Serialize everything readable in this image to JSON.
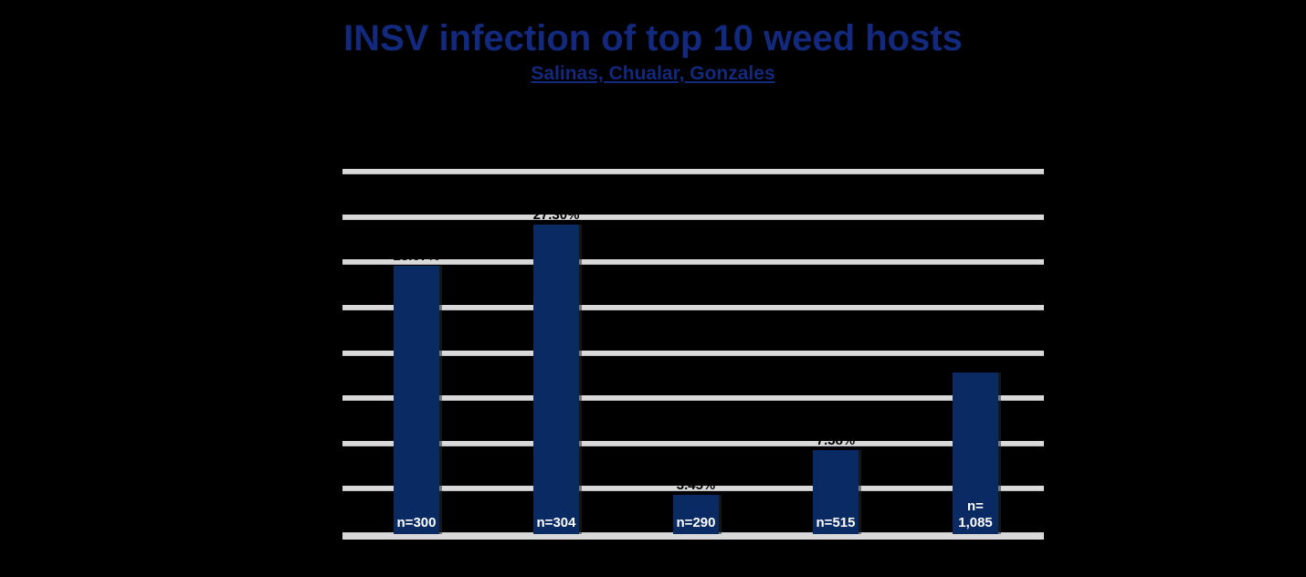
{
  "page": {
    "background_color": "#000000"
  },
  "header": {
    "title": "INSV infection of top 10 weed hosts",
    "subtitle": "Salinas, Chualar, Gonzales"
  },
  "colors": {
    "title_text": "#12297d",
    "bar_fill": "#0a2a63",
    "gridline": "#d9d9d9",
    "value_label_text": "#000000",
    "n_label_text": "#ffffff"
  },
  "chart_data": {
    "type": "bar",
    "title": "INSV infection of top 10 weed hosts",
    "subtitle": "Salinas, Chualar, Gonzales",
    "categories": [
      "",
      "",
      "",
      "",
      ""
    ],
    "values": [
      23.67,
      27.3,
      3.45,
      7.38,
      14.29
    ],
    "value_labels": [
      "23.67%",
      "27.30%",
      "3.45%",
      "7.38%",
      "14.29%"
    ],
    "n_labels": [
      "n=300",
      "n=304",
      "n=290",
      "n=515",
      "n=\n1,085"
    ],
    "xlabel": "",
    "ylabel": "",
    "ylim": [
      0,
      32
    ],
    "y_step": 4,
    "grid": true,
    "legend": "none",
    "notes": "y-axis tick labels and x-axis category labels rendered in black on black background (not legible); bar value labels black, only visible where overlapping light gridlines"
  }
}
